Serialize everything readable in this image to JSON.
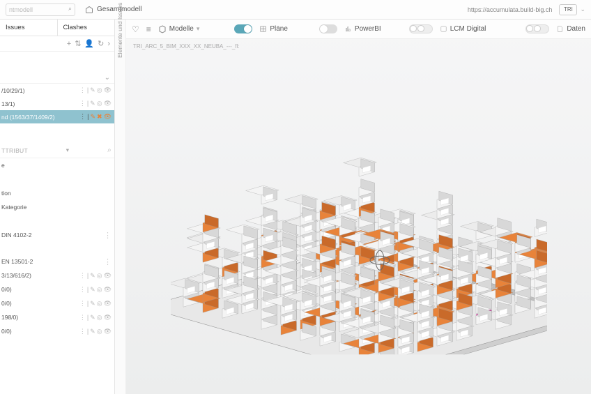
{
  "topbar": {
    "search_placeholder": "ntmodell",
    "title": "Gesamtmodell",
    "url": "https://accumulata.build-big.ch",
    "avatar_label": "TRI"
  },
  "leftpanel": {
    "tabs": {
      "issues": "Issues",
      "clashes": "Clashes"
    },
    "tree": {
      "items": [
        {
          "label": "/10/29/1)"
        },
        {
          "label": "13/1)"
        },
        {
          "label": "nd (1563/37/1409/2)",
          "selected": true
        }
      ]
    },
    "attr_header": "ttribut",
    "properties_top": [
      "e",
      "",
      "tion",
      "Kategorie",
      "",
      "DIN 4102-2"
    ],
    "properties_bottom": [
      {
        "label": "EN 13501-2"
      },
      {
        "label": "3/13/616/2)",
        "acts": true
      },
      {
        "label": "0/0)",
        "acts": true
      },
      {
        "label": "0/0)",
        "acts": true
      },
      {
        "label": "198/0)",
        "acts": true
      },
      {
        "label": "0/0)",
        "acts": true
      }
    ]
  },
  "vertical_label": "Elemente und Issues",
  "viewer_toolbar": {
    "model_dd": "Modelle",
    "items": [
      {
        "label": "Pläne",
        "toggle": "on"
      },
      {
        "label": "PowerBI",
        "toggle": "off"
      },
      {
        "label": "LCM Digital",
        "toggle": "double"
      },
      {
        "label": "Daten",
        "toggle": "double"
      }
    ]
  },
  "breadcrumb": "TRI_ARC_5_BIM_XXX_XX_NEUBA_---_fl:",
  "model_colors": {
    "wall_light": "#f4f4f4",
    "wall_shadow": "#d8d8d8",
    "orange": "#e8833a",
    "orange_dark": "#c96a2a",
    "magenta": "#e83ab0",
    "outline": "#9a9a9a",
    "slab": "#e8e8e8"
  }
}
